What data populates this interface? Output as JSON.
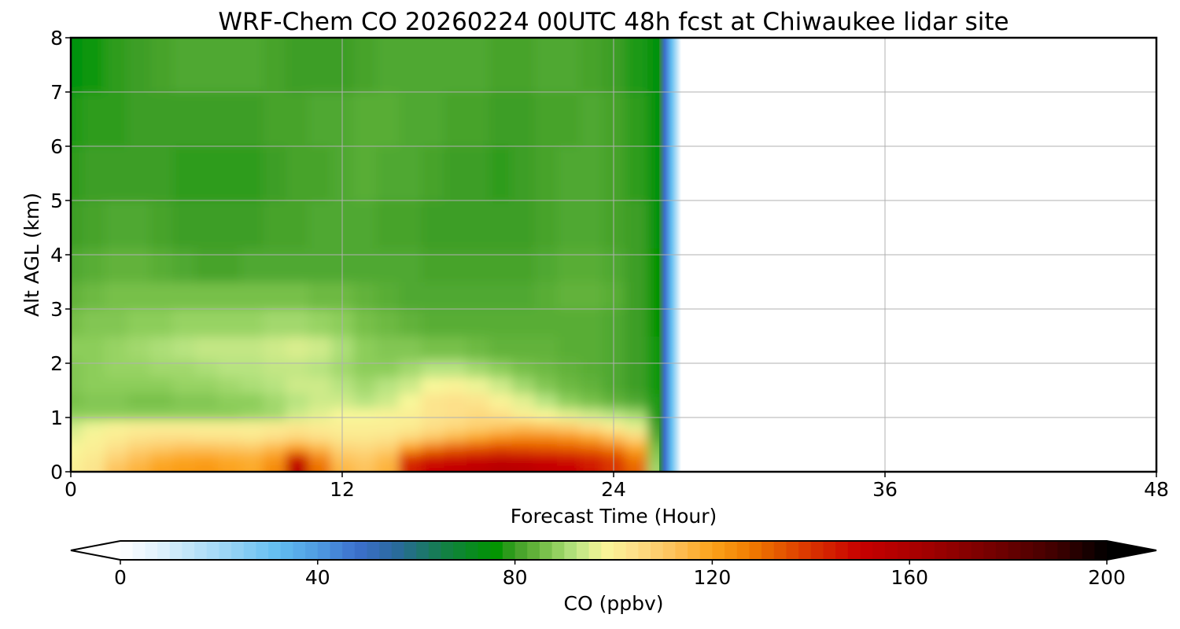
{
  "chart_data": {
    "type": "heatmap",
    "title": "WRF-Chem CO  20260224 00UTC 48h fcst at Chiwaukee lidar site",
    "xlabel": "Forecast Time (Hour)",
    "ylabel": "Alt AGL (km)",
    "xlim": [
      0,
      48
    ],
    "ylim": [
      0,
      8
    ],
    "xticks": [
      "0",
      "12",
      "24",
      "36",
      "48"
    ],
    "yticks": [
      "0",
      "1",
      "2",
      "3",
      "4",
      "5",
      "6",
      "7",
      "8"
    ],
    "grid": true,
    "data_extent_hours": [
      0,
      27
    ],
    "columns_hours": [
      0,
      1,
      2,
      3,
      4,
      5,
      6,
      7,
      8,
      9,
      10,
      11,
      12,
      13,
      14,
      15,
      16,
      17,
      18,
      19,
      20,
      21,
      22,
      23,
      24,
      25,
      26
    ],
    "rows_km": [
      0.05,
      0.25,
      0.45,
      0.65,
      0.85,
      1.05,
      1.3,
      1.6,
      1.9,
      2.25,
      2.75,
      3.25,
      3.75,
      4.5,
      5.5,
      6.5,
      7.5
    ],
    "values_ppbv": [
      [
        100,
        103,
        112,
        116,
        120,
        121,
        122,
        120,
        118,
        125,
        155,
        130,
        115,
        112,
        116,
        145,
        150,
        152,
        154,
        156,
        155,
        152,
        150,
        146,
        140,
        132,
        90
      ],
      [
        99,
        102,
        108,
        113,
        117,
        119,
        120,
        118,
        117,
        122,
        148,
        126,
        112,
        110,
        114,
        140,
        146,
        148,
        150,
        152,
        151,
        149,
        147,
        143,
        138,
        128,
        88
      ],
      [
        98,
        100,
        104,
        108,
        110,
        112,
        112,
        111,
        110,
        114,
        120,
        114,
        107,
        106,
        108,
        120,
        128,
        132,
        134,
        136,
        135,
        134,
        133,
        131,
        127,
        118,
        86
      ],
      [
        96,
        99,
        101,
        103,
        104,
        104,
        103,
        103,
        102,
        104,
        106,
        104,
        102,
        102,
        103,
        106,
        110,
        114,
        118,
        122,
        124,
        124,
        122,
        118,
        112,
        106,
        82
      ],
      [
        94,
        97,
        99,
        100,
        100,
        100,
        100,
        100,
        100,
        101,
        102,
        101,
        100,
        100,
        100,
        101,
        104,
        106,
        108,
        110,
        112,
        110,
        108,
        104,
        100,
        96,
        80
      ],
      [
        88,
        88,
        88,
        88,
        88,
        88,
        88,
        88,
        89,
        90,
        94,
        96,
        98,
        98,
        99,
        100,
        103,
        104,
        106,
        104,
        100,
        98,
        96,
        94,
        92,
        90,
        78
      ],
      [
        86,
        87,
        87,
        86,
        86,
        87,
        87,
        88,
        88,
        90,
        92,
        94,
        94,
        92,
        94,
        98,
        103,
        104,
        103,
        99,
        96,
        92,
        88,
        86,
        84,
        82,
        78
      ],
      [
        87,
        88,
        88,
        88,
        88,
        89,
        89,
        90,
        91,
        92,
        94,
        94,
        92,
        90,
        92,
        94,
        98,
        99,
        97,
        94,
        90,
        87,
        85,
        84,
        82,
        80,
        77
      ],
      [
        87,
        88,
        89,
        89,
        90,
        90,
        91,
        92,
        92,
        93,
        93,
        92,
        90,
        88,
        88,
        90,
        92,
        92,
        90,
        88,
        86,
        85,
        84,
        83,
        82,
        80,
        77
      ],
      [
        88,
        88,
        89,
        90,
        91,
        92,
        93,
        93,
        93,
        94,
        95,
        94,
        91,
        88,
        87,
        87,
        86,
        86,
        85,
        84,
        84,
        84,
        83,
        83,
        82,
        80,
        77
      ],
      [
        86,
        87,
        87,
        88,
        88,
        89,
        89,
        89,
        89,
        90,
        90,
        89,
        88,
        86,
        85,
        84,
        83,
        83,
        83,
        83,
        83,
        83,
        83,
        83,
        82,
        80,
        76
      ],
      [
        84,
        85,
        86,
        86,
        86,
        86,
        86,
        86,
        86,
        86,
        86,
        85,
        85,
        84,
        83,
        82,
        82,
        82,
        82,
        82,
        82,
        83,
        84,
        84,
        83,
        80,
        76
      ],
      [
        82,
        83,
        84,
        84,
        83,
        82,
        81,
        81,
        82,
        82,
        82,
        82,
        82,
        82,
        82,
        82,
        81,
        81,
        81,
        81,
        81,
        82,
        83,
        83,
        82,
        80,
        76
      ],
      [
        80,
        81,
        82,
        82,
        81,
        80,
        80,
        80,
        80,
        81,
        81,
        82,
        82,
        82,
        81,
        81,
        80,
        80,
        80,
        80,
        80,
        81,
        82,
        82,
        81,
        80,
        75
      ],
      [
        79,
        80,
        80,
        80,
        80,
        79,
        79,
        79,
        79,
        80,
        81,
        81,
        82,
        83,
        82,
        82,
        81,
        80,
        80,
        79,
        80,
        81,
        82,
        82,
        81,
        79,
        75
      ],
      [
        78,
        79,
        79,
        80,
        80,
        80,
        80,
        80,
        80,
        81,
        81,
        82,
        82,
        83,
        83,
        82,
        82,
        81,
        81,
        80,
        80,
        81,
        81,
        82,
        81,
        79,
        75
      ],
      [
        75,
        77,
        79,
        80,
        81,
        82,
        82,
        82,
        82,
        81,
        80,
        80,
        80,
        81,
        82,
        82,
        82,
        82,
        82,
        81,
        81,
        82,
        82,
        81,
        80,
        78,
        75
      ]
    ],
    "colorbar": {
      "label": "CO  (ppbv)",
      "ticks": [
        "0",
        "40",
        "80",
        "120",
        "160",
        "200"
      ],
      "range": [
        0,
        200
      ],
      "extend": "both",
      "colors": [
        "#ffffff",
        "#dff1fc",
        "#b6e1f8",
        "#8fd0f4",
        "#62bdf0",
        "#4f9ce2",
        "#3c6fcc",
        "#2a6a9c",
        "#128044",
        "#009400",
        "#3e9e26",
        "#62b23a",
        "#8ccd5a",
        "#b7e380",
        "#f8f79a",
        "#fde08a",
        "#fdc25c",
        "#fca21a",
        "#f07b00",
        "#dd3e00",
        "#c80000",
        "#a00000",
        "#700000",
        "#3e0000",
        "#000000"
      ],
      "color_stops": [
        0,
        8,
        16,
        24,
        32,
        40,
        48,
        56,
        66,
        76,
        80,
        84,
        88,
        92,
        98,
        104,
        112,
        120,
        128,
        138,
        150,
        164,
        178,
        190,
        200
      ]
    }
  }
}
